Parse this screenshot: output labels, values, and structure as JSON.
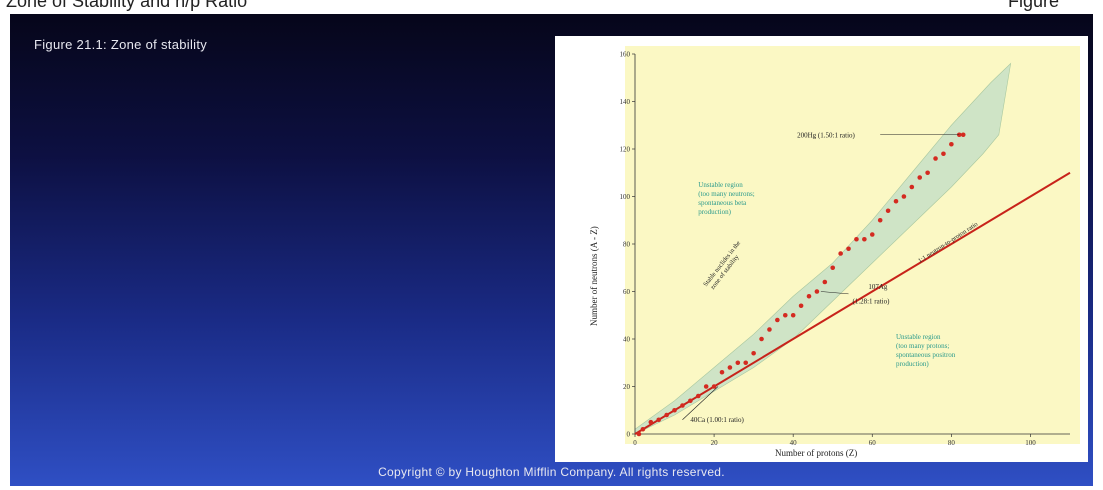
{
  "header": {
    "left_text": "Zone of Stability and n/p Ratio",
    "right_text": "Figure"
  },
  "slide": {
    "title": "Figure 21.1: Zone of stability",
    "copyright": "Copyright © by Houghton Mifflin Company. All rights reserved."
  },
  "colors": {
    "background_top": "#06061a",
    "background_bottom": "#2f4fc4",
    "plot_area": "#fbf8c4",
    "band": "#cfe4c6",
    "stable_nuclei": "#d42a20",
    "ratio_line": "#c8231a",
    "region_text": "#2a9a8c"
  },
  "chart_data": {
    "type": "scatter",
    "xlabel": "Number of protons (Z)",
    "ylabel": "Number of neutrons (A - Z)",
    "xlim": [
      0,
      110
    ],
    "ylim": [
      0,
      160
    ],
    "x_ticks": [
      0,
      20,
      40,
      60,
      80,
      100
    ],
    "y_ticks": [
      0,
      20,
      40,
      60,
      80,
      100,
      120,
      140,
      160
    ],
    "series": [
      {
        "name": "stable nuclei",
        "points": [
          [
            1,
            0
          ],
          [
            2,
            2
          ],
          [
            4,
            5
          ],
          [
            6,
            6
          ],
          [
            8,
            8
          ],
          [
            10,
            10
          ],
          [
            12,
            12
          ],
          [
            14,
            14
          ],
          [
            16,
            16
          ],
          [
            18,
            20
          ],
          [
            20,
            20
          ],
          [
            22,
            26
          ],
          [
            24,
            28
          ],
          [
            26,
            30
          ],
          [
            28,
            30
          ],
          [
            30,
            34
          ],
          [
            32,
            40
          ],
          [
            34,
            44
          ],
          [
            36,
            48
          ],
          [
            38,
            50
          ],
          [
            40,
            50
          ],
          [
            42,
            54
          ],
          [
            44,
            58
          ],
          [
            46,
            60
          ],
          [
            48,
            64
          ],
          [
            50,
            70
          ],
          [
            52,
            76
          ],
          [
            54,
            78
          ],
          [
            56,
            82
          ],
          [
            58,
            82
          ],
          [
            60,
            84
          ],
          [
            62,
            90
          ],
          [
            64,
            94
          ],
          [
            66,
            98
          ],
          [
            68,
            100
          ],
          [
            70,
            104
          ],
          [
            72,
            108
          ],
          [
            74,
            110
          ],
          [
            76,
            116
          ],
          [
            78,
            118
          ],
          [
            80,
            122
          ],
          [
            82,
            126
          ],
          [
            83,
            126
          ]
        ]
      },
      {
        "name": "1:1 neutron-to-proton ratio",
        "points": [
          [
            0,
            0
          ],
          [
            110,
            110
          ]
        ]
      }
    ],
    "band_of_stability": {
      "upper": [
        [
          0,
          2
        ],
        [
          10,
          14
        ],
        [
          20,
          28
        ],
        [
          30,
          42
        ],
        [
          40,
          58
        ],
        [
          50,
          72
        ],
        [
          60,
          90
        ],
        [
          70,
          110
        ],
        [
          80,
          130
        ],
        [
          90,
          148
        ],
        [
          95,
          156
        ]
      ],
      "lower": [
        [
          0,
          0
        ],
        [
          10,
          8
        ],
        [
          20,
          18
        ],
        [
          30,
          28
        ],
        [
          40,
          40
        ],
        [
          50,
          56
        ],
        [
          60,
          72
        ],
        [
          70,
          88
        ],
        [
          80,
          104
        ],
        [
          88,
          118
        ],
        [
          92,
          126
        ]
      ]
    },
    "annotations": {
      "hg": "200Hg (1.50:1 ratio)",
      "ca": "40Ca (1.00:1 ratio)",
      "ag": "107Ag (1.28:1 ratio)",
      "ratio_line": "1:1 neutron-to-proton ratio",
      "upper_region": [
        "Unstable region",
        "(too many neutrons;",
        "spontaneous beta",
        "production)"
      ],
      "lower_region": [
        "Unstable region",
        "(too many protons;",
        "spontaneous positron",
        "production)"
      ],
      "band_label": [
        "Stable nuclides in the",
        "zone of stability"
      ]
    }
  }
}
